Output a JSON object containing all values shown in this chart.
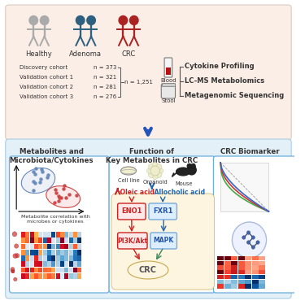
{
  "bg_top": "#faeee6",
  "bg_bottom": "#e4f0f8",
  "healthy_color": "#aaaaaa",
  "adenoma_color": "#2d6080",
  "crc_color": "#aa2222",
  "cohort_lines": [
    [
      "Discovery cohort",
      "n = 373"
    ],
    [
      "Validation cohort 1",
      "n = 321"
    ],
    [
      "Validation cohort 2",
      "n = 281"
    ],
    [
      "Validation cohort 3",
      "n = 276"
    ]
  ],
  "n_total": "n = 1,251",
  "assay_labels": [
    "Cytokine Profiling",
    "LC-MS Metabolomics",
    "Metagenomic Sequencing"
  ],
  "blood_label": "Blood",
  "stool_label": "Stool",
  "panel1_title": "Metabolites and\nMicrobiota/Cytokines",
  "panel1_sub": "Metabolite correlation with\nmicrobes or cytokines",
  "panel2_title": "Function of\nKey Metabolites in CRC",
  "panel2_model_labels": [
    "Cell line",
    "Organoid",
    "Mouse"
  ],
  "oleic_label": " Oleic acid",
  "allocholic_label": " Allocholic acid",
  "eno1_label": "ENO1",
  "fxr1_label": "FXR1",
  "pi3k_label": "PI3K/Akt",
  "mapk_label": "MAPK",
  "crc_label": "CRC",
  "panel3_title": "CRC Biomarker",
  "arrow_color": "#2255bb",
  "red_color": "#cc2222",
  "blue_color": "#2266aa",
  "box_border": "#6aade0",
  "roc_colors": [
    "#44aa44",
    "#cc3333",
    "#3366cc"
  ],
  "label_color": "#333333"
}
